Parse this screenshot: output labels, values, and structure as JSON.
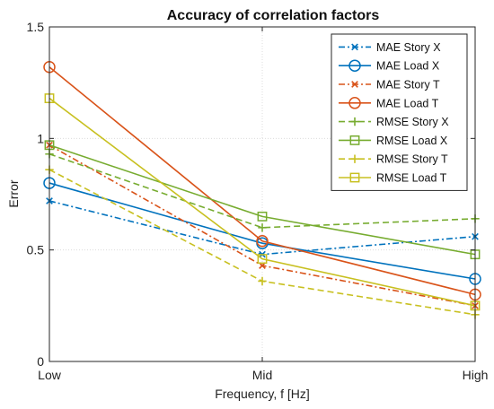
{
  "chart_data": {
    "type": "line",
    "title": "Accuracy of correlation factors",
    "xlabel": "Frequency, f [Hz]",
    "ylabel": "Error",
    "categories": [
      "Low",
      "Mid",
      "High"
    ],
    "ylim": [
      0,
      1.5
    ],
    "yticks": [
      "0",
      "0.5",
      "1",
      "1.5"
    ],
    "grid": true,
    "legend_position": "top-right",
    "series": [
      {
        "name": "MAE Story X",
        "values": [
          0.72,
          0.48,
          0.56
        ],
        "color": "#0072BD",
        "dash": "dashdot",
        "marker": "x"
      },
      {
        "name": "MAE Load X",
        "values": [
          0.8,
          0.53,
          0.37
        ],
        "color": "#0072BD",
        "dash": "solid",
        "marker": "o"
      },
      {
        "name": "MAE Story T",
        "values": [
          0.97,
          0.43,
          0.25
        ],
        "color": "#D95319",
        "dash": "dashdot",
        "marker": "x"
      },
      {
        "name": "MAE Load T",
        "values": [
          1.32,
          0.54,
          0.3
        ],
        "color": "#D95319",
        "dash": "solid",
        "marker": "o"
      },
      {
        "name": "RMSE Story X",
        "values": [
          0.93,
          0.6,
          0.64
        ],
        "color": "#77AC30",
        "dash": "dashed",
        "marker": "+"
      },
      {
        "name": "RMSE Load X",
        "values": [
          0.97,
          0.65,
          0.48
        ],
        "color": "#77AC30",
        "dash": "solid",
        "marker": "s"
      },
      {
        "name": "RMSE Story T",
        "values": [
          0.86,
          0.36,
          0.21
        ],
        "color": "#C8C020",
        "dash": "dashed",
        "marker": "+"
      },
      {
        "name": "RMSE Load T",
        "values": [
          1.18,
          0.46,
          0.25
        ],
        "color": "#C8C020",
        "dash": "solid",
        "marker": "s"
      }
    ]
  }
}
